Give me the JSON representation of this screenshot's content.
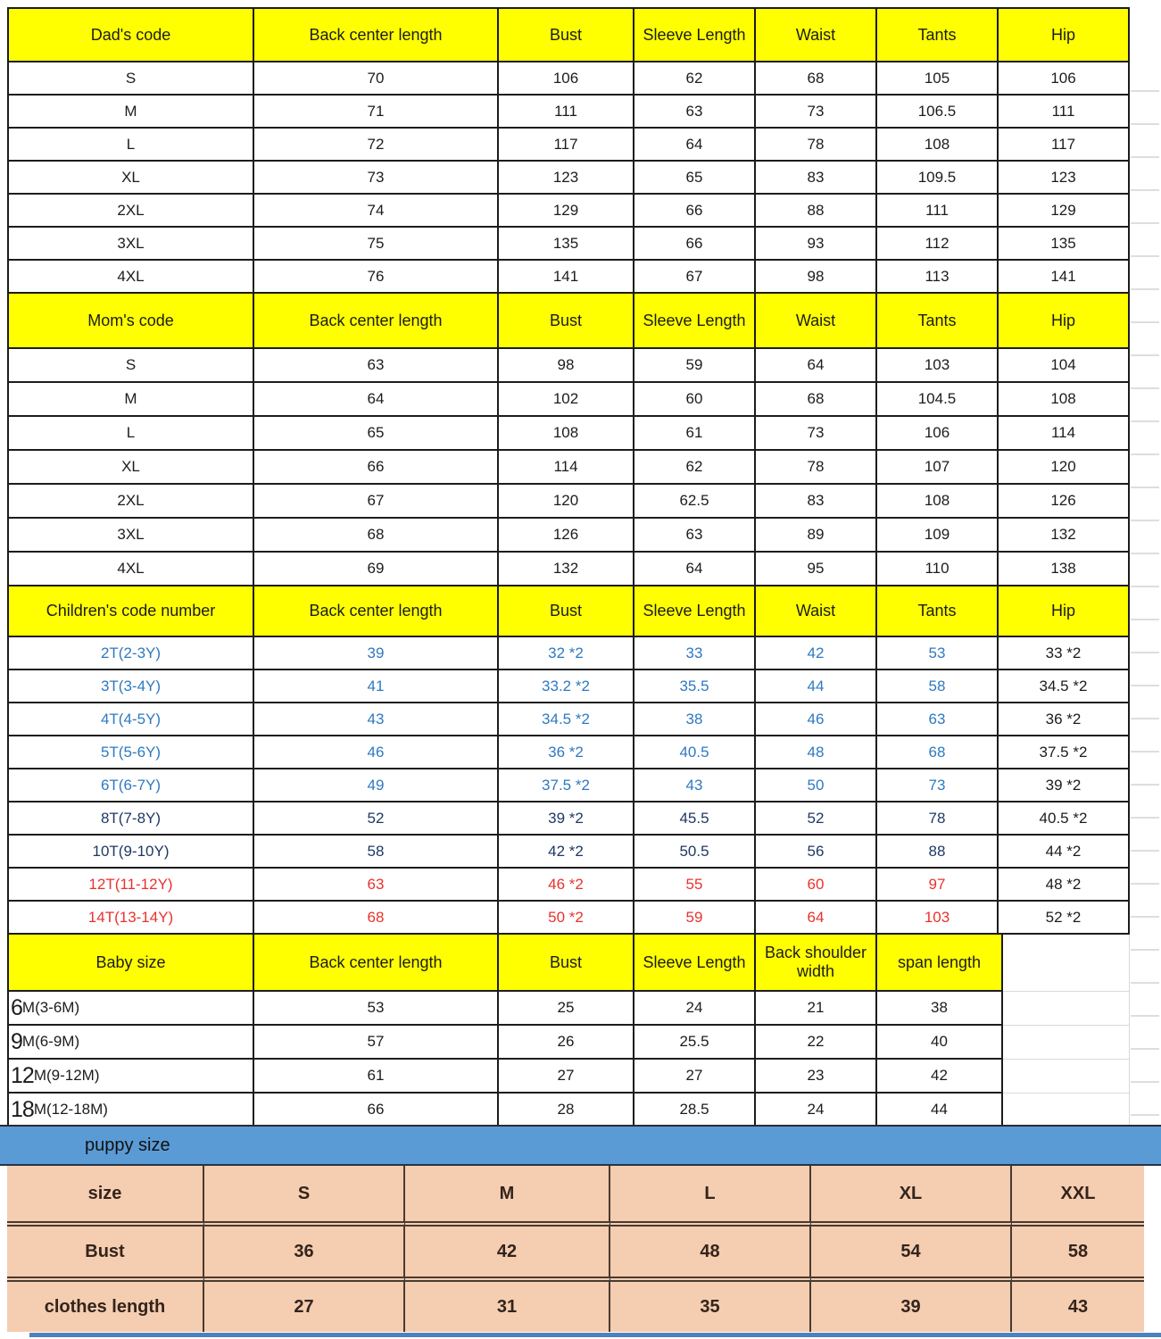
{
  "colors": {
    "header_yellow": "#ffff00",
    "border_dark": "#1c1c1c",
    "banner_blue": "#5b9bd5",
    "puppy_peach": "#f5cdb0",
    "child_blue": "#2e79c0",
    "child_navy": "#1f3864",
    "child_red": "#e9322d"
  },
  "tables": {
    "dad": {
      "headers": [
        "Dad's code",
        "Back center length",
        "Bust",
        "Sleeve Length",
        "Waist",
        "Tants",
        "Hip"
      ],
      "rows": [
        [
          "S",
          "70",
          "106",
          "62",
          "68",
          "105",
          "106"
        ],
        [
          "M",
          "71",
          "111",
          "63",
          "73",
          "106.5",
          "111"
        ],
        [
          "L",
          "72",
          "117",
          "64",
          "78",
          "108",
          "117"
        ],
        [
          "XL",
          "73",
          "123",
          "65",
          "83",
          "109.5",
          "123"
        ],
        [
          "2XL",
          "74",
          "129",
          "66",
          "88",
          "111",
          "129"
        ],
        [
          "3XL",
          "75",
          "135",
          "66",
          "93",
          "112",
          "135"
        ],
        [
          "4XL",
          "76",
          "141",
          "67",
          "98",
          "113",
          "141"
        ]
      ]
    },
    "mom": {
      "headers": [
        "Mom's code",
        "Back center length",
        "Bust",
        "Sleeve Length",
        "Waist",
        "Tants",
        "Hip"
      ],
      "rows": [
        [
          "S",
          "63",
          "98",
          "59",
          "64",
          "103",
          "104"
        ],
        [
          "M",
          "64",
          "102",
          "60",
          "68",
          "104.5",
          "108"
        ],
        [
          "L",
          "65",
          "108",
          "61",
          "73",
          "106",
          "114"
        ],
        [
          "XL",
          "66",
          "114",
          "62",
          "78",
          "107",
          "120"
        ],
        [
          "2XL",
          "67",
          "120",
          "62.5",
          "83",
          "108",
          "126"
        ],
        [
          "3XL",
          "68",
          "126",
          "63",
          "89",
          "109",
          "132"
        ],
        [
          "4XL",
          "69",
          "132",
          "64",
          "95",
          "110",
          "138"
        ]
      ]
    },
    "children": {
      "headers": [
        "Children's code number",
        "Back center length",
        "Bust",
        "Sleeve Length",
        "Waist",
        "Tants",
        "Hip"
      ],
      "rows": [
        {
          "color": "blue",
          "cells": [
            "2T(2-3Y)",
            "39",
            "32 *2",
            "33",
            "42",
            "53",
            "33 *2"
          ]
        },
        {
          "color": "blue",
          "cells": [
            "3T(3-4Y)",
            "41",
            "33.2 *2",
            "35.5",
            "44",
            "58",
            "34.5 *2"
          ]
        },
        {
          "color": "blue",
          "cells": [
            "4T(4-5Y)",
            "43",
            "34.5 *2",
            "38",
            "46",
            "63",
            "36 *2"
          ]
        },
        {
          "color": "blue",
          "cells": [
            "5T(5-6Y)",
            "46",
            "36 *2",
            "40.5",
            "48",
            "68",
            "37.5 *2"
          ]
        },
        {
          "color": "blue",
          "cells": [
            "6T(6-7Y)",
            "49",
            "37.5 *2",
            "43",
            "50",
            "73",
            "39 *2"
          ]
        },
        {
          "color": "navy",
          "cells": [
            "8T(7-8Y)",
            "52",
            "39 *2",
            "45.5",
            "52",
            "78",
            "40.5 *2"
          ]
        },
        {
          "color": "navy",
          "cells": [
            "10T(9-10Y)",
            "58",
            "42 *2",
            "50.5",
            "56",
            "88",
            "44 *2"
          ]
        },
        {
          "color": "red",
          "cells": [
            "12T(11-12Y)",
            "63",
            "46 *2",
            "55",
            "60",
            "97",
            "48 *2"
          ]
        },
        {
          "color": "red",
          "cells": [
            "14T(13-14Y)",
            "68",
            "50 *2",
            "59",
            "64",
            "103",
            "52 *2"
          ]
        }
      ]
    },
    "baby": {
      "headers": [
        "Baby size",
        "Back center length",
        "Bust",
        "Sleeve Length",
        "Back shoulder width",
        "span length"
      ],
      "rows": [
        {
          "lead": "6",
          "rest": "M(3-6M)",
          "values": [
            "53",
            "25",
            "24",
            "21",
            "38"
          ]
        },
        {
          "lead": "9",
          "rest": "M(6-9M)",
          "values": [
            "57",
            "26",
            "25.5",
            "22",
            "40"
          ]
        },
        {
          "lead": "12",
          "rest": "M(9-12M)",
          "values": [
            "61",
            "27",
            "27",
            "23",
            "42"
          ]
        },
        {
          "lead": "18",
          "rest": "M(12-18M)",
          "values": [
            "66",
            "28",
            "28.5",
            "24",
            "44"
          ]
        }
      ]
    },
    "puppy": {
      "banner": "puppy size",
      "rows": [
        [
          "size",
          "S",
          "M",
          "L",
          "XL",
          "XXL"
        ],
        [
          "Bust",
          "36",
          "42",
          "48",
          "54",
          "58"
        ],
        [
          "clothes length",
          "27",
          "31",
          "35",
          "39",
          "43"
        ]
      ]
    }
  }
}
